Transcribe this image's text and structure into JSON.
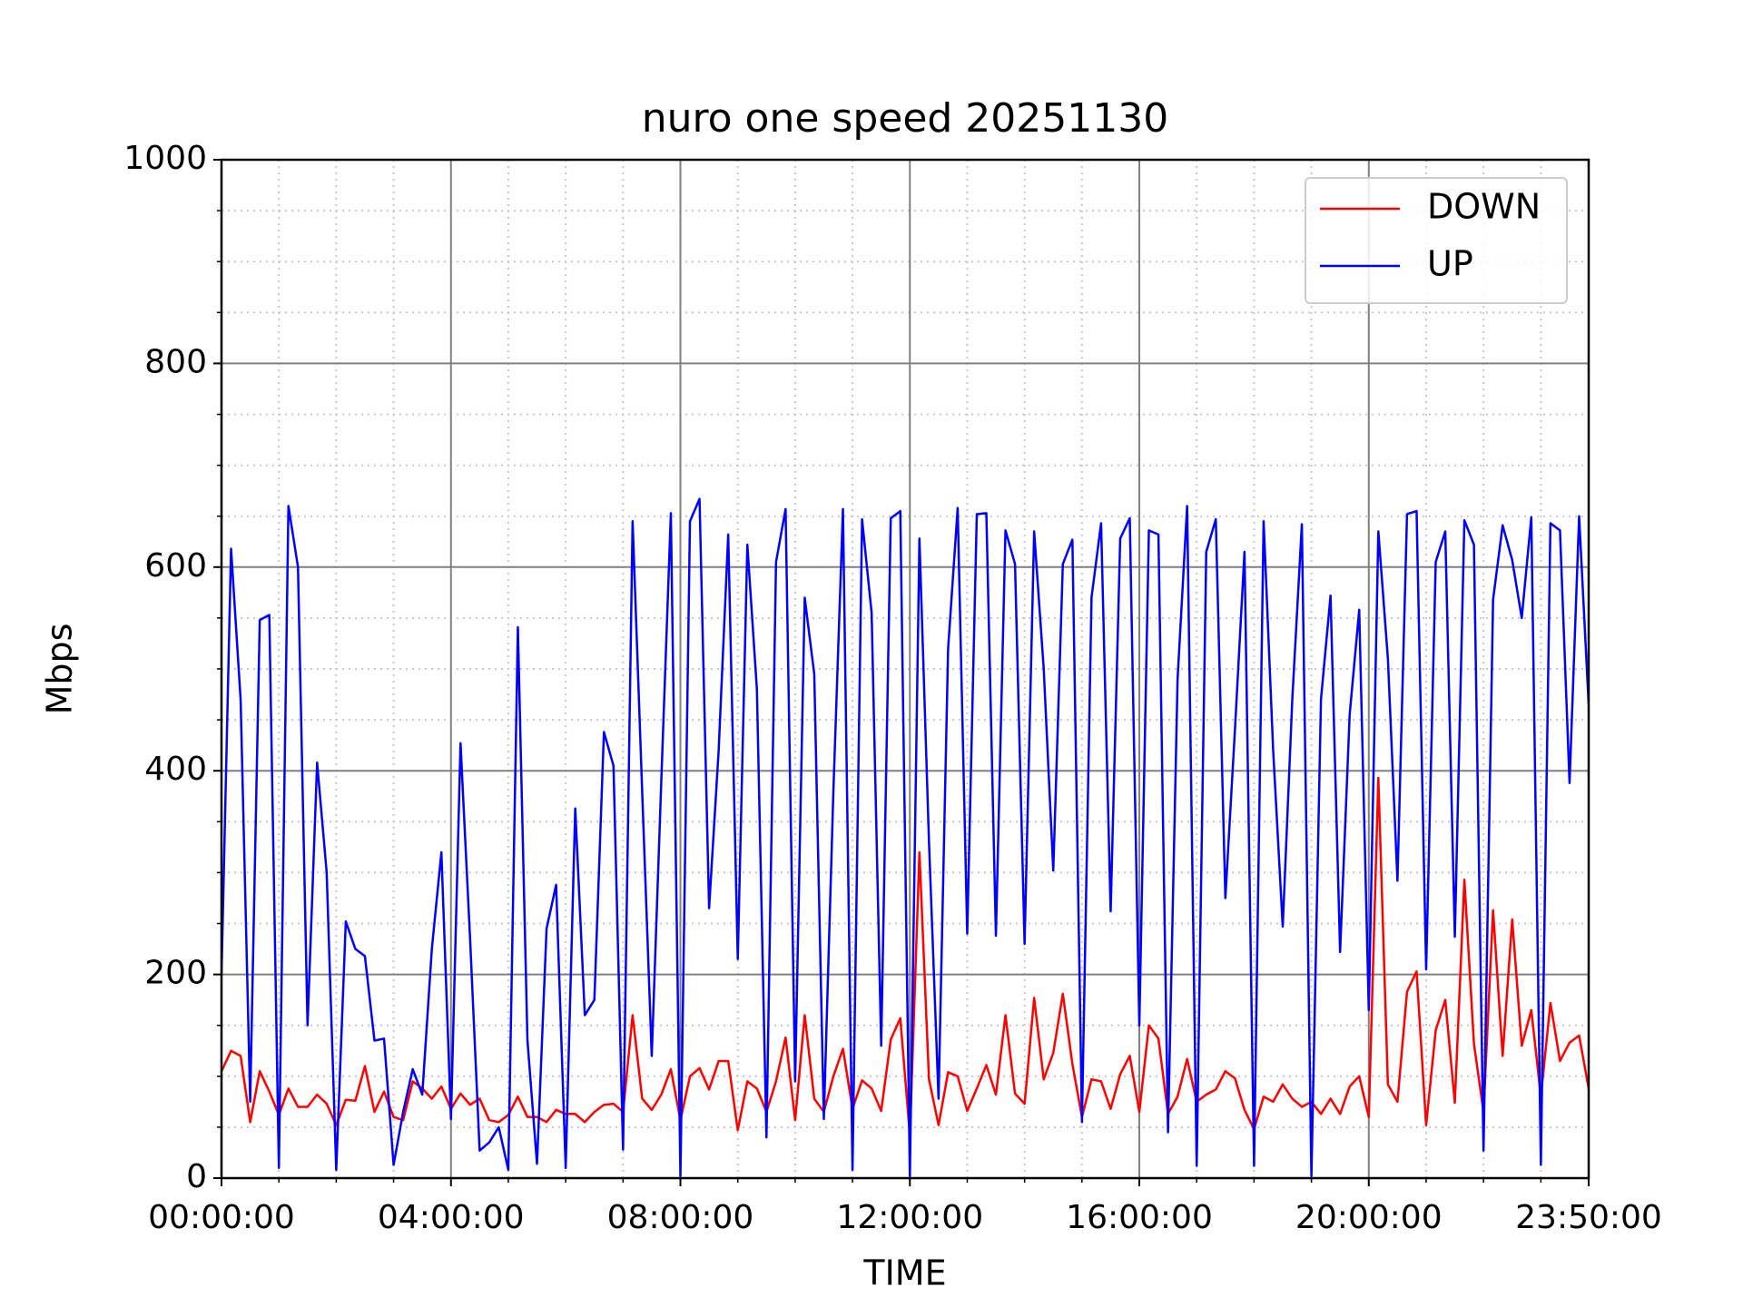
{
  "chart_data": {
    "type": "line",
    "title": "nuro one speed 20251130",
    "xlabel": "TIME",
    "ylabel": "Mbps",
    "x": [
      0,
      10,
      20,
      30,
      40,
      50,
      60,
      70,
      80,
      90,
      100,
      110,
      120,
      130,
      140,
      150,
      160,
      170,
      180,
      190,
      200,
      210,
      220,
      230,
      240,
      250,
      260,
      270,
      280,
      290,
      300,
      310,
      320,
      330,
      340,
      350,
      360,
      370,
      380,
      390,
      400,
      410,
      420,
      430,
      440,
      450,
      460,
      470,
      480,
      490,
      500,
      510,
      520,
      530,
      540,
      550,
      560,
      570,
      580,
      590,
      600,
      610,
      620,
      630,
      640,
      650,
      660,
      670,
      680,
      690,
      700,
      710,
      720,
      730,
      740,
      750,
      760,
      770,
      780,
      790,
      800,
      810,
      820,
      830,
      840,
      850,
      860,
      870,
      880,
      890,
      900,
      910,
      920,
      930,
      940,
      950,
      960,
      970,
      980,
      990,
      1000,
      1010,
      1020,
      1030,
      1040,
      1050,
      1060,
      1070,
      1080,
      1090,
      1100,
      1110,
      1120,
      1130,
      1140,
      1150,
      1160,
      1170,
      1180,
      1190,
      1200,
      1210,
      1220,
      1230,
      1240,
      1250,
      1260,
      1270,
      1280,
      1290,
      1300,
      1310,
      1320,
      1330,
      1340,
      1350,
      1360,
      1370,
      1380,
      1390,
      1400,
      1410,
      1420,
      1430
    ],
    "series": [
      {
        "name": "DOWN",
        "color": "#ff0000",
        "values": [
          105,
          125,
          120,
          55,
          105,
          85,
          62,
          88,
          70,
          70,
          82,
          73,
          52,
          77,
          76,
          110,
          65,
          85,
          60,
          57,
          95,
          88,
          78,
          90,
          68,
          83,
          72,
          78,
          57,
          55,
          62,
          80,
          60,
          60,
          55,
          67,
          63,
          63,
          55,
          65,
          72,
          73,
          65,
          160,
          78,
          67,
          82,
          107,
          57,
          100,
          108,
          87,
          115,
          115,
          47,
          95,
          88,
          65,
          95,
          138,
          57,
          160,
          78,
          65,
          100,
          127,
          68,
          96,
          88,
          66,
          136,
          157,
          42,
          320,
          97,
          52,
          104,
          100,
          66,
          88,
          111,
          82,
          160,
          83,
          73,
          177,
          97,
          123,
          181,
          112,
          60,
          97,
          95,
          68,
          102,
          120,
          65,
          150,
          137,
          63,
          80,
          117,
          75,
          82,
          87,
          105,
          98,
          67,
          48,
          80,
          75,
          92,
          78,
          70,
          75,
          63,
          78,
          63,
          90,
          100,
          60,
          393,
          92,
          75,
          183,
          203,
          52,
          145,
          175,
          74,
          293,
          132,
          65,
          263,
          120,
          254,
          130,
          165,
          80,
          172,
          115,
          133,
          140,
          88
        ]
      },
      {
        "name": "UP",
        "color": "#0000ff",
        "values": [
          200,
          618,
          470,
          75,
          548,
          553,
          10,
          660,
          600,
          150,
          408,
          300,
          8,
          252,
          225,
          218,
          135,
          137,
          13,
          65,
          107,
          82,
          225,
          320,
          58,
          427,
          235,
          27,
          35,
          50,
          8,
          541,
          135,
          14,
          245,
          288,
          10,
          363,
          160,
          175,
          438,
          405,
          28,
          645,
          380,
          120,
          390,
          653,
          2,
          645,
          667,
          265,
          420,
          632,
          215,
          622,
          480,
          40,
          605,
          657,
          95,
          570,
          495,
          58,
          380,
          657,
          8,
          647,
          555,
          130,
          648,
          655,
          2,
          628,
          330,
          78,
          520,
          658,
          240,
          652,
          653,
          238,
          636,
          603,
          230,
          635,
          500,
          302,
          603,
          627,
          55,
          570,
          643,
          262,
          628,
          648,
          150,
          636,
          632,
          45,
          490,
          660,
          12,
          615,
          647,
          275,
          440,
          615,
          12,
          645,
          420,
          247,
          470,
          642,
          2,
          470,
          572,
          222,
          455,
          558,
          165,
          635,
          510,
          292,
          652,
          655,
          205,
          605,
          635,
          237,
          646,
          622,
          27,
          568,
          641,
          607,
          550,
          649,
          13,
          643,
          636,
          388,
          650,
          465
        ]
      }
    ],
    "xlim": [
      0,
      1430
    ],
    "xticks": [
      {
        "value": 0,
        "label": "00:00:00"
      },
      {
        "value": 240,
        "label": "04:00:00"
      },
      {
        "value": 480,
        "label": "08:00:00"
      },
      {
        "value": 720,
        "label": "12:00:00"
      },
      {
        "value": 960,
        "label": "16:00:00"
      },
      {
        "value": 1200,
        "label": "20:00:00"
      },
      {
        "value": 1430,
        "label": "23:50:00"
      }
    ],
    "ylim": [
      0,
      1000
    ],
    "yticks": [
      0,
      200,
      400,
      600,
      800,
      1000
    ],
    "grid": true,
    "minor_grid": true,
    "legend": "upper right"
  }
}
